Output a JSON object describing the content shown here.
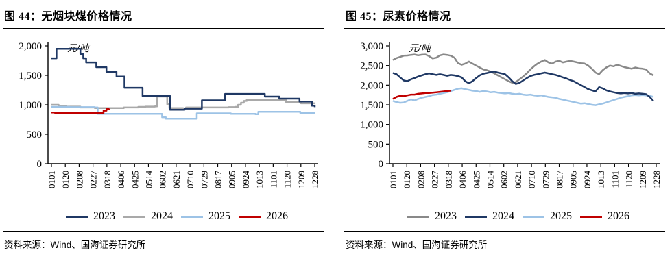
{
  "figures": [
    {
      "title": "图 44：无烟块煤价格情况",
      "source": "资料来源：Wind、国海证券研究所",
      "chart_data": {
        "type": "line",
        "title": "无烟块煤价格情况",
        "ylabel": "元/吨",
        "unit_label": "元/吨",
        "ylim": [
          0,
          2000
        ],
        "y_ticks": [
          "0",
          "500",
          "1,000",
          "1,500",
          "2,000"
        ],
        "grid": false,
        "legend_position": "bottom",
        "x_tick_labels": [
          "0101",
          "0120",
          "0208",
          "0227",
          "0318",
          "0406",
          "0425",
          "0514",
          "0602",
          "0621",
          "0710",
          "0729",
          "0817",
          "0905",
          "0924",
          "1013",
          "1101",
          "1120",
          "1209",
          "1228"
        ],
        "x_is_day_of_year": true,
        "series": [
          {
            "name": "2023",
            "color": "#1f3864",
            "style": "step",
            "z": 3,
            "points": [
              [
                0,
                1790
              ],
              [
                7,
                1950
              ],
              [
                36,
                1950
              ],
              [
                40,
                1860
              ],
              [
                44,
                1790
              ],
              [
                48,
                1720
              ],
              [
                58,
                1720
              ],
              [
                62,
                1640
              ],
              [
                72,
                1640
              ],
              [
                76,
                1560
              ],
              [
                86,
                1560
              ],
              [
                90,
                1480
              ],
              [
                98,
                1480
              ],
              [
                101,
                1290
              ],
              [
                122,
                1290
              ],
              [
                126,
                1150
              ],
              [
                160,
                1150
              ],
              [
                164,
                915
              ],
              [
                180,
                915
              ],
              [
                184,
                935
              ],
              [
                204,
                935
              ],
              [
                208,
                1075
              ],
              [
                236,
                1075
              ],
              [
                240,
                1185
              ],
              [
                291,
                1185
              ],
              [
                295,
                1140
              ],
              [
                311,
                1140
              ],
              [
                315,
                1105
              ],
              [
                339,
                1105
              ],
              [
                343,
                1055
              ],
              [
                356,
                1055
              ],
              [
                360,
                985
              ],
              [
                364,
                960
              ]
            ]
          },
          {
            "name": "2024",
            "color": "#a9a9a9",
            "style": "step",
            "z": 1,
            "points": [
              [
                0,
                1000
              ],
              [
                10,
                985
              ],
              [
                20,
                970
              ],
              [
                40,
                955
              ],
              [
                60,
                945
              ],
              [
                90,
                945
              ],
              [
                100,
                955
              ],
              [
                120,
                965
              ],
              [
                130,
                970
              ],
              [
                143,
                975
              ],
              [
                146,
                1140
              ],
              [
                157,
                1140
              ],
              [
                160,
                1010
              ],
              [
                163,
                945
              ],
              [
                182,
                940
              ],
              [
                186,
                955
              ],
              [
                215,
                955
              ],
              [
                245,
                960
              ],
              [
                254,
                965
              ],
              [
                258,
                1000
              ],
              [
                262,
                1035
              ],
              [
                266,
                1065
              ],
              [
                270,
                1085
              ],
              [
                320,
                1085
              ],
              [
                324,
                1050
              ],
              [
                341,
                1050
              ],
              [
                345,
                1025
              ],
              [
                364,
                1020
              ]
            ]
          },
          {
            "name": "2025",
            "color": "#9dc3e6",
            "style": "step",
            "z": 2,
            "points": [
              [
                0,
                965
              ],
              [
                25,
                960
              ],
              [
                60,
                955
              ],
              [
                64,
                845
              ],
              [
                148,
                845
              ],
              [
                153,
                790
              ],
              [
                158,
                765
              ],
              [
                197,
                765
              ],
              [
                201,
                855
              ],
              [
                240,
                855
              ],
              [
                248,
                845
              ],
              [
                282,
                840
              ],
              [
                286,
                880
              ],
              [
                340,
                880
              ],
              [
                344,
                862
              ],
              [
                364,
                862
              ]
            ]
          },
          {
            "name": "2026",
            "color": "#c00000",
            "style": "step",
            "z": 4,
            "points": [
              [
                0,
                870
              ],
              [
                5,
                860
              ],
              [
                55,
                860
              ],
              [
                60,
                857
              ],
              [
                68,
                860
              ],
              [
                72,
                900
              ],
              [
                76,
                928
              ],
              [
                80,
                935
              ]
            ]
          }
        ]
      }
    },
    {
      "title": "图 45：尿素价格情况",
      "source": "资料来源：Wind、国海证券研究所",
      "chart_data": {
        "type": "line",
        "title": "尿素价格情况",
        "ylabel": "元/吨",
        "unit_label": "元/吨",
        "ylim": [
          0,
          3000
        ],
        "y_ticks": [
          "0",
          "500",
          "1,000",
          "1,500",
          "2,000",
          "2,500",
          "3,000"
        ],
        "grid": false,
        "legend_position": "bottom",
        "x_tick_labels": [
          "0101",
          "0120",
          "0208",
          "0227",
          "0318",
          "0406",
          "0425",
          "0514",
          "0602",
          "0621",
          "0710",
          "0729",
          "0817",
          "0905",
          "0924",
          "1013",
          "1101",
          "1120",
          "1209",
          "1228"
        ],
        "x_is_day_of_year": true,
        "series": [
          {
            "name": "2023",
            "color": "#898989",
            "style": "smooth",
            "z": 1,
            "x_step": 5,
            "values": [
              2640,
              2690,
              2720,
              2750,
              2755,
              2770,
              2780,
              2760,
              2775,
              2780,
              2740,
              2680,
              2700,
              2760,
              2780,
              2770,
              2750,
              2700,
              2560,
              2520,
              2550,
              2600,
              2550,
              2500,
              2450,
              2400,
              2380,
              2350,
              2300,
              2250,
              2200,
              2150,
              2100,
              2060,
              2080,
              2150,
              2220,
              2300,
              2400,
              2480,
              2550,
              2600,
              2640,
              2580,
              2550,
              2600,
              2620,
              2580,
              2600,
              2620,
              2600,
              2580,
              2560,
              2550,
              2500,
              2420,
              2320,
              2280,
              2380,
              2450,
              2500,
              2480,
              2520,
              2490,
              2460,
              2440,
              2420,
              2450,
              2430,
              2420,
              2400,
              2300,
              2250
            ]
          },
          {
            "name": "2024",
            "color": "#1f3864",
            "style": "smooth",
            "z": 3,
            "x_step": 5,
            "values": [
              2310,
              2280,
              2200,
              2120,
              2100,
              2150,
              2180,
              2220,
              2250,
              2280,
              2300,
              2280,
              2260,
              2280,
              2260,
              2240,
              2260,
              2250,
              2230,
              2200,
              2100,
              2050,
              2100,
              2180,
              2250,
              2290,
              2310,
              2330,
              2350,
              2320,
              2300,
              2280,
              2200,
              2100,
              2030,
              2060,
              2120,
              2180,
              2230,
              2260,
              2280,
              2300,
              2320,
              2300,
              2280,
              2260,
              2230,
              2200,
              2170,
              2130,
              2100,
              2050,
              2000,
              1950,
              1900,
              1870,
              1840,
              1950,
              1920,
              1870,
              1840,
              1820,
              1800,
              1790,
              1800,
              1790,
              1800,
              1780,
              1790,
              1780,
              1770,
              1700,
              1600
            ]
          },
          {
            "name": "2025",
            "color": "#9dc3e6",
            "style": "smooth",
            "z": 2,
            "x_step": 5,
            "values": [
              1600,
              1570,
              1550,
              1560,
              1600,
              1640,
              1610,
              1650,
              1680,
              1700,
              1720,
              1750,
              1760,
              1780,
              1800,
              1820,
              1850,
              1880,
              1910,
              1920,
              1900,
              1880,
              1860,
              1850,
              1830,
              1850,
              1840,
              1820,
              1830,
              1810,
              1800,
              1790,
              1800,
              1780,
              1770,
              1780,
              1760,
              1750,
              1760,
              1740,
              1730,
              1740,
              1720,
              1700,
              1690,
              1680,
              1650,
              1630,
              1610,
              1590,
              1570,
              1550,
              1530,
              1540,
              1520,
              1500,
              1490,
              1510,
              1530,
              1560,
              1590,
              1620,
              1650,
              1680,
              1700,
              1720,
              1740,
              1750,
              1740,
              1750,
              1740,
              1730,
              1700
            ]
          },
          {
            "name": "2026",
            "color": "#c00000",
            "style": "smooth",
            "z": 4,
            "x_step": 5,
            "values": [
              1650,
              1700,
              1730,
              1720,
              1740,
              1760,
              1760,
              1780,
              1790,
              1800,
              1800,
              1810,
              1820,
              1830,
              1840,
              1850,
              1860
            ]
          }
        ]
      }
    }
  ]
}
